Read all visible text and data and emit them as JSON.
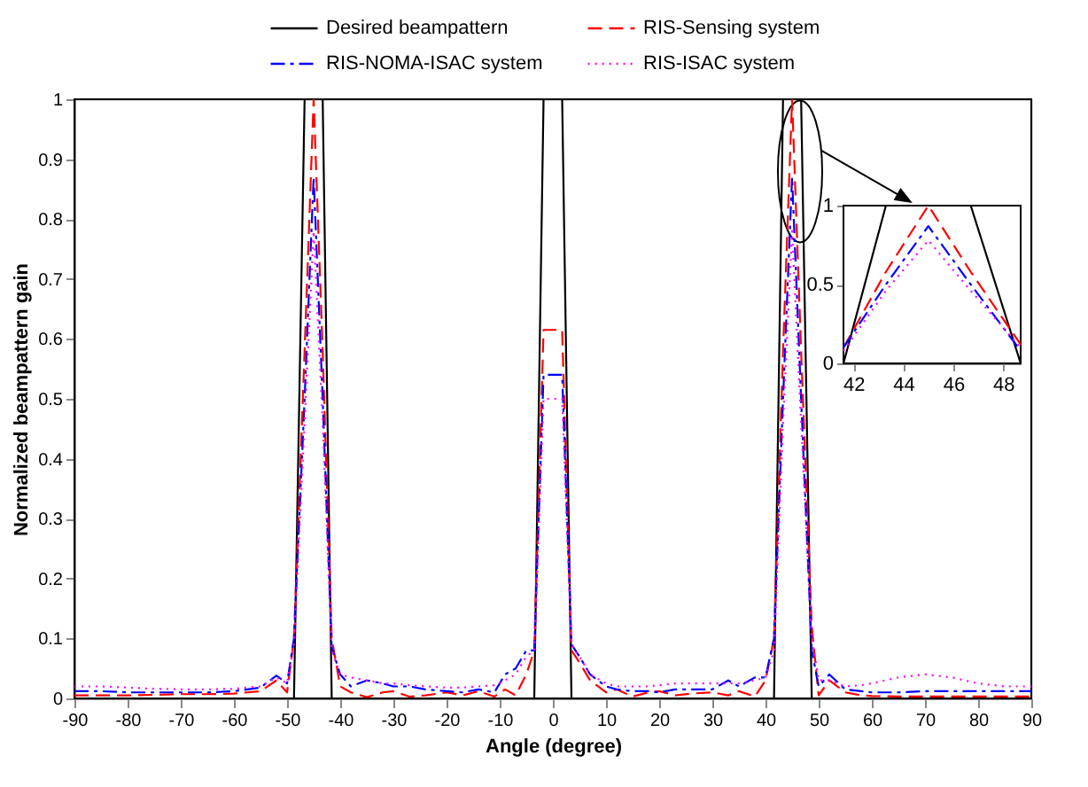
{
  "chart_data": [
    {
      "type": "line",
      "xlabel": "Angle (degree)",
      "ylabel": "Normalized beampattern gain",
      "xlim": [
        -90,
        90
      ],
      "ylim": [
        0,
        1
      ],
      "xticks": [
        -90,
        -80,
        -70,
        -60,
        -50,
        -40,
        -30,
        -20,
        -10,
        0,
        10,
        20,
        30,
        40,
        50,
        60,
        70,
        80,
        90
      ],
      "yticks": [
        0,
        0.1,
        0.2,
        0.3,
        0.4,
        0.5,
        0.6,
        0.7,
        0.8,
        0.9,
        1
      ],
      "legend": "top",
      "grid": false,
      "series": [
        {
          "name": "Desired beampattern",
          "color": "#000000",
          "line_style": "solid",
          "x": [
            -90,
            -48.7,
            -46.7,
            -43.3,
            -41.6,
            -3.5,
            -1.75,
            1.75,
            3.5,
            41.6,
            43.3,
            46.7,
            48.7,
            90
          ],
          "values": [
            0,
            0,
            1,
            1,
            0,
            0,
            1,
            1,
            0,
            0,
            1,
            1,
            0,
            0
          ]
        },
        {
          "name": "RIS-Sensing system",
          "color": "#ff0000",
          "line_style": "dashed",
          "x": [
            -90,
            -85,
            -80,
            -75,
            -70,
            -65,
            -60,
            -55,
            -52,
            -50,
            -48.7,
            -46.7,
            -45,
            -43.3,
            -41.6,
            -40,
            -38,
            -35,
            -32,
            -30,
            -27,
            -24,
            -20,
            -17,
            -14,
            -11,
            -9,
            -7,
            -5,
            -3.5,
            -1.75,
            0,
            1.75,
            3.5,
            5,
            7,
            10,
            12,
            15,
            18,
            20,
            23,
            26,
            30,
            33,
            35,
            38,
            40,
            41.6,
            43.3,
            45,
            46.7,
            48.7,
            50,
            52,
            55,
            58,
            60,
            65,
            70,
            75,
            80,
            85,
            90
          ],
          "values": [
            0.005,
            0.005,
            0.005,
            0.006,
            0.007,
            0.007,
            0.008,
            0.012,
            0.03,
            0.01,
            0.1,
            0.58,
            1.0,
            0.58,
            0.1,
            0.02,
            0.01,
            0.002,
            0.01,
            0.012,
            0.003,
            0.005,
            0.01,
            0.005,
            0.012,
            0.003,
            0.015,
            0.005,
            0.04,
            0.08,
            0.615,
            0.615,
            0.615,
            0.08,
            0.06,
            0.03,
            0.01,
            0.015,
            0.003,
            0.01,
            0.012,
            0.005,
            0.008,
            0.01,
            0.005,
            0.012,
            0.003,
            0.03,
            0.1,
            0.58,
            1.0,
            0.58,
            0.12,
            0.005,
            0.03,
            0.01,
            0.005,
            0.004,
            0.003,
            0.003,
            0.003,
            0.003,
            0.003,
            0.003
          ]
        },
        {
          "name": "RIS-NOMA-ISAC system",
          "color": "#0000ff",
          "line_style": "dashdot",
          "x": [
            -90,
            -85,
            -80,
            -75,
            -70,
            -65,
            -60,
            -55,
            -52,
            -50,
            -48.7,
            -46.7,
            -45,
            -43.3,
            -41.6,
            -40,
            -38,
            -35,
            -32,
            -30,
            -27,
            -24,
            -20,
            -17,
            -14,
            -11,
            -9,
            -7,
            -5,
            -3.5,
            -1.75,
            0,
            1.75,
            3.5,
            5,
            7,
            10,
            12,
            15,
            18,
            20,
            23,
            26,
            30,
            33,
            35,
            38,
            40,
            41.6,
            43.3,
            45,
            46.7,
            48.7,
            50,
            52,
            55,
            58,
            60,
            65,
            70,
            75,
            80,
            85,
            90
          ],
          "values": [
            0.012,
            0.012,
            0.01,
            0.01,
            0.01,
            0.01,
            0.012,
            0.018,
            0.038,
            0.025,
            0.1,
            0.5,
            0.87,
            0.5,
            0.085,
            0.04,
            0.02,
            0.03,
            0.025,
            0.02,
            0.02,
            0.015,
            0.012,
            0.01,
            0.015,
            0.01,
            0.04,
            0.05,
            0.08,
            0.08,
            0.54,
            0.54,
            0.54,
            0.09,
            0.07,
            0.04,
            0.02,
            0.015,
            0.012,
            0.012,
            0.01,
            0.015,
            0.015,
            0.015,
            0.03,
            0.02,
            0.035,
            0.035,
            0.1,
            0.5,
            0.87,
            0.5,
            0.08,
            0.02,
            0.04,
            0.015,
            0.012,
            0.01,
            0.01,
            0.012,
            0.012,
            0.012,
            0.012,
            0.012
          ]
        },
        {
          "name": "RIS-ISAC system",
          "color": "#ff00ff",
          "line_style": "dotted",
          "x": [
            -90,
            -85,
            -80,
            -75,
            -70,
            -65,
            -60,
            -55,
            -52,
            -50,
            -48.7,
            -46.7,
            -45,
            -43.3,
            -41.6,
            -40,
            -38,
            -35,
            -32,
            -30,
            -27,
            -24,
            -20,
            -17,
            -14,
            -11,
            -9,
            -7,
            -5,
            -3.5,
            -1.75,
            0,
            1.75,
            3.5,
            5,
            7,
            10,
            12,
            15,
            18,
            20,
            23,
            26,
            30,
            33,
            35,
            38,
            40,
            41.6,
            43.3,
            45,
            46.7,
            48.7,
            50,
            52,
            55,
            58,
            60,
            65,
            70,
            75,
            80,
            85,
            90
          ],
          "values": [
            0.02,
            0.02,
            0.018,
            0.016,
            0.015,
            0.015,
            0.016,
            0.02,
            0.035,
            0.025,
            0.09,
            0.46,
            0.78,
            0.46,
            0.08,
            0.04,
            0.035,
            0.03,
            0.025,
            0.025,
            0.022,
            0.02,
            0.018,
            0.018,
            0.02,
            0.022,
            0.03,
            0.04,
            0.07,
            0.08,
            0.5,
            0.5,
            0.5,
            0.09,
            0.07,
            0.04,
            0.025,
            0.02,
            0.02,
            0.02,
            0.022,
            0.025,
            0.025,
            0.025,
            0.025,
            0.025,
            0.03,
            0.035,
            0.08,
            0.46,
            0.78,
            0.46,
            0.1,
            0.03,
            0.03,
            0.02,
            0.022,
            0.025,
            0.035,
            0.04,
            0.035,
            0.025,
            0.02,
            0.02
          ]
        }
      ]
    },
    {
      "type": "line",
      "xlim": [
        41.6,
        48.7
      ],
      "ylim": [
        0,
        1
      ],
      "xticks": [
        42,
        44,
        46,
        48
      ],
      "yticks": [
        0,
        0.5,
        1
      ],
      "grid": false,
      "series": [
        {
          "color": "#000000",
          "line_style": "solid",
          "x": [
            41.6,
            43.3,
            46.7,
            48.7
          ],
          "values": [
            0,
            1,
            1,
            0
          ]
        },
        {
          "color": "#ff0000",
          "line_style": "dashed",
          "x": [
            41.6,
            43.3,
            45,
            46.7,
            48.7
          ],
          "values": [
            0.1,
            0.58,
            1.0,
            0.58,
            0.12
          ]
        },
        {
          "color": "#0000ff",
          "line_style": "dashdot",
          "x": [
            41.6,
            43.3,
            45,
            46.7,
            48.7
          ],
          "values": [
            0.1,
            0.5,
            0.87,
            0.5,
            0.08
          ]
        },
        {
          "color": "#ff00ff",
          "line_style": "dotted",
          "x": [
            41.6,
            43.3,
            45,
            46.7,
            48.7
          ],
          "values": [
            0.08,
            0.46,
            0.78,
            0.46,
            0.1
          ]
        }
      ]
    }
  ]
}
